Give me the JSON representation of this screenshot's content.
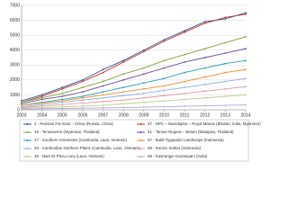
{
  "chart_data": {
    "type": "line",
    "x": [
      2003,
      2004,
      2005,
      2006,
      2007,
      2008,
      2009,
      2010,
      2011,
      2012,
      2013,
      2014
    ],
    "xticks": [
      2003,
      2004,
      2005,
      2006,
      2007,
      2008,
      2009,
      2010,
      2011,
      2012,
      2013,
      2014
    ],
    "xlim": [
      2003,
      2014
    ],
    "ylim": [
      0,
      7000
    ],
    "yticks": [
      0,
      1000,
      2000,
      3000,
      4000,
      5000,
      6000,
      7000
    ],
    "grid": true,
    "series": [
      {
        "name": "2 - Russian Far East – China (Russia, China)",
        "color": "#2e4f8f",
        "values": [
          600,
          1000,
          1500,
          2000,
          2700,
          3300,
          4000,
          4700,
          5300,
          5900,
          6100,
          6500
        ]
      },
      {
        "name": "37 - NPC – Namdapha – Royal Manas (Bhutan, India, Myanmar)",
        "color": "#c0392b",
        "values": [
          500,
          900,
          1400,
          1900,
          2500,
          3200,
          3900,
          4600,
          5200,
          5800,
          6200,
          6400
        ]
      },
      {
        "name": "19 - Tenasserim (Myanmar, Thailand)",
        "color": "#7fa33a",
        "values": [
          500,
          800,
          1100,
          1500,
          1900,
          2400,
          2800,
          3300,
          3700,
          4100,
          4500,
          4900
        ]
      },
      {
        "name": "51 - Taman Negara – Belum (Malaysia, Thailand)",
        "color": "#6a4c93",
        "values": [
          400,
          700,
          900,
          1200,
          1600,
          2000,
          2400,
          2800,
          3200,
          3500,
          3800,
          4100
        ]
      },
      {
        "name": "27 - Southern Annamites (Cambodia, Laos, Vietnam)",
        "color": "#2a9db3",
        "values": [
          300,
          500,
          700,
          900,
          1200,
          1500,
          1800,
          2100,
          2500,
          2800,
          3100,
          3300
        ]
      },
      {
        "name": "57 - Bukit Tigapuluh Landscape (Indonesia)",
        "color": "#e8912e",
        "values": [
          300,
          450,
          600,
          800,
          1000,
          1200,
          1400,
          1600,
          1900,
          2200,
          2500,
          2700
        ]
      },
      {
        "name": "33 - Cambodian Northern Plains (Cambodia, Laos, Vietnam)",
        "color": "#8eaede",
        "values": [
          200,
          350,
          500,
          650,
          800,
          950,
          1100,
          1300,
          1500,
          1700,
          1900,
          2100
        ]
      },
      {
        "name": "58 - Kerinci Seblat (Indonesia)",
        "color": "#e39aa0",
        "values": [
          150,
          250,
          350,
          450,
          550,
          650,
          800,
          950,
          1100,
          1250,
          1400,
          1550
        ]
      },
      {
        "name": "35 - Nam Et Phou Loey (Laos, Vietnam)",
        "color": "#b5d08b",
        "values": [
          100,
          150,
          200,
          250,
          300,
          400,
          500,
          600,
          700,
          800,
          900,
          1000
        ]
      },
      {
        "name": "68 - Kasiranga–Garampani (India)",
        "color": "#b3a4cf",
        "values": [
          50,
          70,
          90,
          110,
          130,
          150,
          180,
          210,
          240,
          270,
          300,
          330
        ]
      }
    ]
  }
}
